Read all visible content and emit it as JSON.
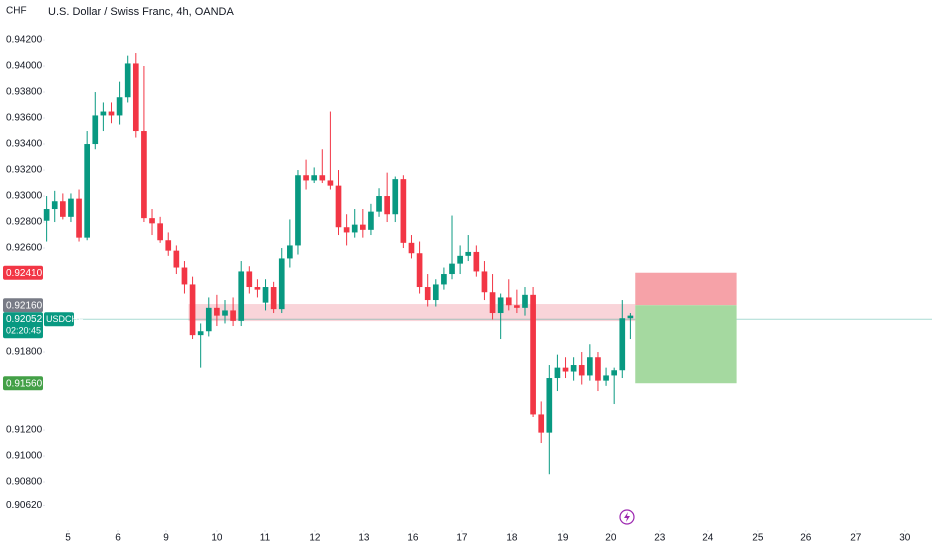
{
  "chart_data": {
    "type": "candlestick",
    "title": "U.S. Dollar / Swiss Franc, 4h, OANDA",
    "axis_unit": "CHF",
    "up_color": "#089981",
    "down_color": "#f23645",
    "x": [
      0,
      1,
      2,
      3,
      4,
      5,
      6,
      7,
      8,
      9,
      10,
      11,
      12,
      13,
      14,
      15,
      16,
      17,
      18,
      19,
      20,
      21,
      22,
      23,
      24,
      25,
      26,
      27,
      28,
      29,
      30,
      31,
      32,
      33,
      34,
      35,
      36,
      37,
      38,
      39,
      40,
      41,
      42,
      43,
      44,
      45,
      46,
      47,
      48,
      49,
      50,
      51,
      52,
      53,
      54,
      55,
      56,
      57,
      58,
      59,
      60,
      61,
      62,
      63,
      64,
      65,
      66,
      67,
      68,
      69,
      70,
      71,
      72
    ],
    "open": [
      0.9281,
      0.929,
      0.9296,
      0.9284,
      0.9298,
      0.9268,
      0.934,
      0.9362,
      0.9365,
      0.9362,
      0.9376,
      0.9402,
      0.935,
      0.9283,
      0.9279,
      0.9266,
      0.9258,
      0.9245,
      0.9232,
      0.9193,
      0.9196,
      0.9214,
      0.9208,
      0.9212,
      0.9204,
      0.9242,
      0.923,
      0.9218,
      0.923,
      0.9213,
      0.9252,
      0.9262,
      0.9316,
      0.9312,
      0.9316,
      0.9312,
      0.9308,
      0.9276,
      0.9272,
      0.9278,
      0.9274,
      0.9288,
      0.93,
      0.9286,
      0.9313,
      0.9264,
      0.9256,
      0.923,
      0.922,
      0.9232,
      0.924,
      0.9248,
      0.9254,
      0.9257,
      0.9242,
      0.9226,
      0.921,
      0.9222,
      0.9216,
      0.9214,
      0.9224,
      0.9132,
      0.9118,
      0.916,
      0.9168,
      0.9165,
      0.917,
      0.9162,
      0.9176,
      0.9158,
      0.9162,
      0.9166,
      0.9206
    ],
    "high": [
      0.93,
      0.9304,
      0.9302,
      0.9302,
      0.9305,
      0.935,
      0.938,
      0.9372,
      0.9372,
      0.9388,
      0.9408,
      0.941,
      0.94,
      0.929,
      0.9284,
      0.9272,
      0.9262,
      0.925,
      0.9238,
      0.9202,
      0.9222,
      0.9224,
      0.922,
      0.9222,
      0.925,
      0.9246,
      0.9236,
      0.9236,
      0.9234,
      0.926,
      0.9282,
      0.932,
      0.9328,
      0.9322,
      0.9336,
      0.9365,
      0.932,
      0.9286,
      0.929,
      0.929,
      0.9294,
      0.9306,
      0.9318,
      0.9315,
      0.9316,
      0.927,
      0.9265,
      0.924,
      0.9236,
      0.9245,
      0.9285,
      0.9262,
      0.927,
      0.9262,
      0.925,
      0.924,
      0.9225,
      0.9236,
      0.9228,
      0.923,
      0.923,
      0.9142,
      0.917,
      0.9178,
      0.9176,
      0.9176,
      0.918,
      0.9186,
      0.918,
      0.9168,
      0.9168,
      0.922,
      0.921
    ],
    "low": [
      0.9265,
      0.928,
      0.9282,
      0.928,
      0.9265,
      0.9266,
      0.9336,
      0.935,
      0.9356,
      0.9355,
      0.9372,
      0.9345,
      0.928,
      0.927,
      0.9264,
      0.9254,
      0.924,
      0.9225,
      0.919,
      0.9168,
      0.9192,
      0.92,
      0.9202,
      0.92,
      0.92,
      0.9225,
      0.9222,
      0.9212,
      0.921,
      0.921,
      0.9245,
      0.9255,
      0.9305,
      0.931,
      0.931,
      0.9305,
      0.927,
      0.9262,
      0.9268,
      0.9268,
      0.927,
      0.9284,
      0.928,
      0.928,
      0.926,
      0.9252,
      0.9225,
      0.9215,
      0.9215,
      0.9228,
      0.9236,
      0.924,
      0.925,
      0.9238,
      0.922,
      0.9205,
      0.919,
      0.9212,
      0.921,
      0.9208,
      0.913,
      0.911,
      0.9086,
      0.915,
      0.916,
      0.9158,
      0.9155,
      0.9158,
      0.915,
      0.9154,
      0.914,
      0.916,
      0.919
    ],
    "close": [
      0.929,
      0.9296,
      0.9284,
      0.9298,
      0.9268,
      0.934,
      0.9362,
      0.9365,
      0.9362,
      0.9376,
      0.9402,
      0.935,
      0.9283,
      0.9279,
      0.9266,
      0.9258,
      0.9245,
      0.9232,
      0.9193,
      0.9196,
      0.9214,
      0.9208,
      0.9212,
      0.9204,
      0.9242,
      0.923,
      0.9228,
      0.923,
      0.9213,
      0.9252,
      0.9262,
      0.9316,
      0.9312,
      0.9316,
      0.9312,
      0.9308,
      0.9276,
      0.9272,
      0.9278,
      0.9274,
      0.9288,
      0.93,
      0.9286,
      0.9313,
      0.9264,
      0.9256,
      0.923,
      0.922,
      0.9232,
      0.924,
      0.9248,
      0.9254,
      0.9257,
      0.9242,
      0.9226,
      0.921,
      0.9222,
      0.9216,
      0.9214,
      0.9224,
      0.9132,
      0.9118,
      0.916,
      0.9168,
      0.9165,
      0.917,
      0.9162,
      0.9176,
      0.9158,
      0.9162,
      0.9166,
      0.9206,
      0.9208
    ],
    "xlim": [
      -0.2,
      109.2
    ],
    "ylim": [
      0.90431,
      0.94508
    ],
    "yticks": [
      {
        "value": 0.942,
        "label": "0.94200"
      },
      {
        "value": 0.94,
        "label": "0.94000"
      },
      {
        "value": 0.938,
        "label": "0.93800"
      },
      {
        "value": 0.936,
        "label": "0.93600"
      },
      {
        "value": 0.934,
        "label": "0.93400"
      },
      {
        "value": 0.932,
        "label": "0.93200"
      },
      {
        "value": 0.93,
        "label": "0.93000"
      },
      {
        "value": 0.928,
        "label": "0.92800"
      },
      {
        "value": 0.926,
        "label": "0.92600"
      },
      {
        "value": 0.918,
        "label": "0.91800"
      },
      {
        "value": 0.912,
        "label": "0.91200"
      },
      {
        "value": 0.91,
        "label": "0.91000"
      },
      {
        "value": 0.908,
        "label": "0.90800"
      },
      {
        "value": 0.9062,
        "label": "0.90620"
      }
    ],
    "xticks": [
      {
        "value": 2.64,
        "label": "5"
      },
      {
        "value": 8.8,
        "label": "6"
      },
      {
        "value": 14.72,
        "label": "9"
      },
      {
        "value": 21.0,
        "label": "10"
      },
      {
        "value": 26.93,
        "label": "11"
      },
      {
        "value": 33.09,
        "label": "12"
      },
      {
        "value": 39.13,
        "label": "13"
      },
      {
        "value": 45.18,
        "label": "16"
      },
      {
        "value": 51.22,
        "label": "17"
      },
      {
        "value": 57.39,
        "label": "18"
      },
      {
        "value": 63.67,
        "label": "19"
      },
      {
        "value": 69.59,
        "label": "20"
      },
      {
        "value": 75.63,
        "label": "23"
      },
      {
        "value": 81.55,
        "label": "24"
      },
      {
        "value": 87.72,
        "label": "25"
      },
      {
        "value": 93.63,
        "label": "26"
      },
      {
        "value": 99.8,
        "label": "27"
      },
      {
        "value": 105.84,
        "label": "30"
      }
    ],
    "zone": {
      "from": 17.5,
      "to": 72.6,
      "low": 0.92038,
      "high": 0.92169,
      "color": "#f7c5cc"
    },
    "position": {
      "from": 72.6,
      "to": 85.1,
      "stop": 0.9241,
      "entry": 0.9216,
      "target": 0.9156,
      "loss_color": "#f6a2a8",
      "profit_color": "#a5d9a0"
    },
    "price_labels": [
      {
        "value": 0.9241,
        "label": "0.92410",
        "color": "#f23645"
      },
      {
        "value": 0.9216,
        "label": "0.92160",
        "color": "#787b86"
      },
      {
        "value": 0.9156,
        "label": "0.91560",
        "color": "#43a047"
      }
    ],
    "current_price": {
      "value": 0.92052,
      "symbol": "USDCHF",
      "countdown": "02:20:45",
      "color": "#089981"
    }
  }
}
